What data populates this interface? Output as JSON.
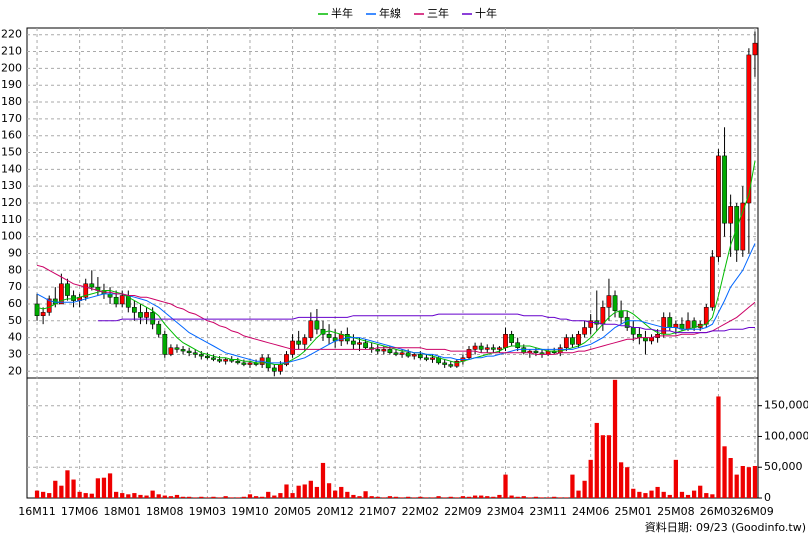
{
  "chart_data": {
    "type": "candlestick",
    "categories": [
      "16M11",
      null,
      null,
      null,
      null,
      null,
      null,
      "17M06",
      null,
      null,
      null,
      null,
      null,
      null,
      "18M01",
      null,
      null,
      null,
      null,
      null,
      null,
      "18M08",
      null,
      null,
      null,
      null,
      null,
      null,
      "19M03",
      null,
      null,
      null,
      null,
      null,
      null,
      "19M10",
      null,
      null,
      null,
      null,
      null,
      null,
      "20M05",
      null,
      null,
      null,
      null,
      null,
      null,
      "20M12",
      null,
      null,
      null,
      null,
      null,
      null,
      "21M07",
      null,
      null,
      null,
      null,
      null,
      null,
      "22M02",
      null,
      null,
      null,
      null,
      null,
      null,
      "22M09",
      null,
      null,
      null,
      null,
      null,
      null,
      "23M04",
      null,
      null,
      null,
      null,
      null,
      null,
      "23M11",
      null,
      null,
      null,
      null,
      null,
      null,
      "24M06",
      null,
      null,
      null,
      null,
      null,
      null,
      "25M01",
      null,
      null,
      null,
      null,
      null,
      null,
      "25M08",
      null,
      null,
      null,
      null,
      null,
      null,
      "26M03",
      null,
      null,
      null,
      null,
      null,
      "26M09"
    ],
    "ohlc": [
      [
        60,
        66,
        50,
        53
      ],
      [
        53,
        58,
        48,
        55
      ],
      [
        55,
        65,
        53,
        63
      ],
      [
        63,
        70,
        58,
        60
      ],
      [
        60,
        78,
        60,
        72
      ],
      [
        72,
        75,
        62,
        65
      ],
      [
        65,
        68,
        58,
        62
      ],
      [
        62,
        66,
        58,
        64
      ],
      [
        64,
        75,
        62,
        72
      ],
      [
        72,
        80,
        68,
        70
      ],
      [
        70,
        76,
        65,
        68
      ],
      [
        68,
        72,
        63,
        66
      ],
      [
        66,
        70,
        60,
        64
      ],
      [
        64,
        68,
        58,
        60
      ],
      [
        60,
        68,
        58,
        65
      ],
      [
        65,
        68,
        55,
        58
      ],
      [
        58,
        62,
        50,
        55
      ],
      [
        55,
        60,
        48,
        52
      ],
      [
        52,
        58,
        48,
        55
      ],
      [
        55,
        58,
        45,
        48
      ],
      [
        48,
        50,
        40,
        42
      ],
      [
        42,
        44,
        28,
        30
      ],
      [
        30,
        36,
        29,
        34
      ],
      [
        34,
        36,
        31,
        33
      ],
      [
        33,
        35,
        30,
        32
      ],
      [
        32,
        34,
        29,
        31
      ],
      [
        31,
        33,
        28,
        30
      ],
      [
        30,
        32,
        27,
        29
      ],
      [
        29,
        31,
        27,
        28
      ],
      [
        28,
        30,
        26,
        27
      ],
      [
        27,
        29,
        25,
        26
      ],
      [
        26,
        28,
        24,
        27
      ],
      [
        27,
        29,
        25,
        26
      ],
      [
        26,
        28,
        24,
        25
      ],
      [
        25,
        27,
        23,
        24
      ],
      [
        24,
        26,
        22,
        25
      ],
      [
        25,
        27,
        23,
        24
      ],
      [
        24,
        30,
        22,
        28
      ],
      [
        28,
        30,
        20,
        22
      ],
      [
        22,
        24,
        17,
        20
      ],
      [
        20,
        26,
        18,
        24
      ],
      [
        24,
        32,
        23,
        30
      ],
      [
        30,
        42,
        28,
        38
      ],
      [
        38,
        44,
        33,
        36
      ],
      [
        36,
        42,
        32,
        40
      ],
      [
        40,
        55,
        38,
        50
      ],
      [
        50,
        57,
        42,
        45
      ],
      [
        45,
        50,
        38,
        42
      ],
      [
        42,
        48,
        36,
        40
      ],
      [
        40,
        45,
        34,
        38
      ],
      [
        38,
        44,
        35,
        42
      ],
      [
        42,
        46,
        36,
        38
      ],
      [
        38,
        42,
        33,
        36
      ],
      [
        36,
        40,
        32,
        37
      ],
      [
        37,
        39,
        33,
        34
      ],
      [
        34,
        37,
        31,
        33
      ],
      [
        33,
        36,
        30,
        32
      ],
      [
        32,
        35,
        30,
        33
      ],
      [
        33,
        35,
        30,
        31
      ],
      [
        31,
        33,
        29,
        30
      ],
      [
        30,
        33,
        28,
        31
      ],
      [
        31,
        33,
        28,
        29
      ],
      [
        29,
        31,
        27,
        30
      ],
      [
        30,
        32,
        27,
        28
      ],
      [
        28,
        30,
        26,
        27
      ],
      [
        27,
        30,
        25,
        28
      ],
      [
        28,
        29,
        24,
        25
      ],
      [
        25,
        27,
        22,
        24
      ],
      [
        24,
        26,
        22,
        23
      ],
      [
        23,
        27,
        22,
        26
      ],
      [
        26,
        30,
        24,
        28
      ],
      [
        28,
        35,
        27,
        33
      ],
      [
        33,
        37,
        30,
        35
      ],
      [
        35,
        37,
        31,
        33
      ],
      [
        33,
        36,
        31,
        34
      ],
      [
        34,
        36,
        31,
        33
      ],
      [
        33,
        35,
        31,
        34
      ],
      [
        34,
        46,
        32,
        42
      ],
      [
        42,
        44,
        35,
        37
      ],
      [
        37,
        40,
        32,
        34
      ],
      [
        34,
        36,
        30,
        31
      ],
      [
        31,
        33,
        28,
        32
      ],
      [
        32,
        34,
        29,
        31
      ],
      [
        31,
        33,
        28,
        30
      ],
      [
        30,
        33,
        29,
        32
      ],
      [
        32,
        34,
        30,
        31
      ],
      [
        31,
        36,
        29,
        34
      ],
      [
        34,
        42,
        32,
        40
      ],
      [
        40,
        42,
        34,
        36
      ],
      [
        36,
        44,
        34,
        42
      ],
      [
        42,
        50,
        40,
        46
      ],
      [
        46,
        54,
        42,
        50
      ],
      [
        50,
        68,
        44,
        48
      ],
      [
        48,
        62,
        44,
        58
      ],
      [
        58,
        75,
        50,
        65
      ],
      [
        65,
        68,
        52,
        56
      ],
      [
        56,
        62,
        48,
        52
      ],
      [
        52,
        56,
        44,
        46
      ],
      [
        46,
        50,
        38,
        42
      ],
      [
        42,
        46,
        36,
        40
      ],
      [
        40,
        44,
        30,
        38
      ],
      [
        38,
        42,
        36,
        40
      ],
      [
        40,
        45,
        37,
        42
      ],
      [
        42,
        55,
        40,
        52
      ],
      [
        52,
        55,
        44,
        46
      ],
      [
        46,
        50,
        42,
        48
      ],
      [
        48,
        52,
        44,
        45
      ],
      [
        45,
        55,
        44,
        50
      ],
      [
        50,
        52,
        44,
        46
      ],
      [
        46,
        50,
        44,
        48
      ],
      [
        48,
        60,
        46,
        58
      ],
      [
        58,
        92,
        56,
        88
      ],
      [
        88,
        152,
        85,
        148
      ],
      [
        148,
        165,
        100,
        108
      ],
      [
        108,
        125,
        88,
        118
      ],
      [
        118,
        120,
        85,
        92
      ],
      [
        92,
        130,
        88,
        120
      ],
      [
        120,
        212,
        90,
        208
      ],
      [
        208,
        222,
        195,
        215
      ]
    ],
    "up_color": "#ff0000",
    "down_color": "#00aa00",
    "ylim": [
      16,
      224
    ],
    "yticks": [
      20,
      30,
      40,
      50,
      60,
      70,
      80,
      90,
      100,
      110,
      120,
      130,
      140,
      150,
      160,
      170,
      180,
      190,
      200,
      210,
      220
    ],
    "grid": true,
    "series": [
      {
        "name": "半年",
        "color": "#00bb00",
        "values": [
          58,
          57,
          58,
          60,
          62,
          63,
          63,
          64,
          65,
          66,
          67,
          68,
          68,
          67,
          66,
          64,
          62,
          60,
          58,
          56,
          53,
          48,
          44,
          40,
          37,
          35,
          33,
          31,
          30,
          29,
          28,
          28,
          27,
          27,
          26,
          26,
          25,
          25,
          25,
          24,
          24,
          25,
          27,
          29,
          32,
          36,
          40,
          43,
          44,
          43,
          42,
          41,
          40,
          39,
          38,
          37,
          36,
          35,
          34,
          33,
          32,
          32,
          31,
          31,
          30,
          29,
          28,
          27,
          26,
          25,
          26,
          27,
          28,
          29,
          30,
          31,
          32,
          34,
          35,
          35,
          35,
          35,
          34,
          33,
          32,
          32,
          32,
          33,
          34,
          35,
          37,
          40,
          44,
          48,
          52,
          55,
          56,
          56,
          54,
          51,
          48,
          45,
          43,
          42,
          42,
          43,
          44,
          45,
          46,
          47,
          48,
          52,
          65,
          80,
          95,
          105,
          115,
          125,
          145
        ]
      },
      {
        "name": "年線",
        "color": "#0066ff",
        "values": [
          66,
          64,
          62,
          61,
          61,
          61,
          61,
          62,
          63,
          64,
          65,
          66,
          66,
          66,
          66,
          65,
          64,
          63,
          62,
          60,
          58,
          55,
          52,
          49,
          46,
          43,
          41,
          39,
          37,
          35,
          33,
          31,
          30,
          29,
          28,
          27,
          26,
          26,
          25,
          25,
          25,
          25,
          26,
          27,
          28,
          30,
          32,
          34,
          36,
          38,
          39,
          40,
          40,
          40,
          39,
          38,
          37,
          36,
          35,
          34,
          33,
          32,
          31,
          31,
          30,
          30,
          29,
          28,
          28,
          27,
          27,
          27,
          28,
          28,
          29,
          29,
          30,
          31,
          32,
          33,
          33,
          33,
          33,
          33,
          33,
          33,
          33,
          33,
          33,
          34,
          35,
          36,
          38,
          40,
          43,
          46,
          48,
          50,
          50,
          50,
          49,
          48,
          47,
          46,
          46,
          46,
          45,
          45,
          45,
          45,
          46,
          48,
          55,
          62,
          70,
          75,
          80,
          88,
          96
        ]
      },
      {
        "name": "三年",
        "color": "#cc0066",
        "values": [
          83,
          82,
          80,
          78,
          76,
          74,
          72,
          71,
          70,
          69,
          68,
          67,
          67,
          66,
          66,
          65,
          65,
          64,
          64,
          63,
          62,
          61,
          60,
          58,
          57,
          55,
          54,
          52,
          50,
          49,
          47,
          46,
          44,
          43,
          41,
          40,
          39,
          38,
          37,
          36,
          35,
          34,
          33,
          33,
          33,
          33,
          33,
          33,
          33,
          33,
          33,
          33,
          33,
          33,
          33,
          33,
          34,
          34,
          34,
          34,
          34,
          34,
          34,
          34,
          33,
          33,
          33,
          33,
          32,
          32,
          32,
          32,
          32,
          31,
          31,
          31,
          31,
          31,
          31,
          31,
          31,
          31,
          30,
          30,
          30,
          30,
          31,
          31,
          31,
          32,
          32,
          33,
          34,
          35,
          36,
          37,
          38,
          39,
          39,
          40,
          40,
          40,
          41,
          41,
          41,
          41,
          42,
          42,
          42,
          43,
          43,
          44,
          46,
          48,
          50,
          52,
          55,
          58,
          61
        ]
      },
      {
        "name": "十年",
        "color": "#6600cc",
        "values": [
          null,
          null,
          null,
          null,
          null,
          null,
          null,
          null,
          null,
          null,
          50,
          50,
          50,
          50,
          51,
          51,
          51,
          51,
          51,
          51,
          51,
          51,
          51,
          51,
          51,
          51,
          51,
          51,
          51,
          51,
          51,
          51,
          51,
          51,
          51,
          51,
          51,
          51,
          51,
          51,
          51,
          51,
          51,
          52,
          52,
          52,
          52,
          52,
          52,
          52,
          52,
          52,
          53,
          53,
          53,
          53,
          53,
          53,
          53,
          53,
          53,
          53,
          53,
          53,
          53,
          53,
          54,
          54,
          54,
          54,
          54,
          54,
          54,
          54,
          54,
          54,
          54,
          54,
          54,
          54,
          53,
          53,
          53,
          53,
          52,
          52,
          51,
          51,
          50,
          50,
          50,
          49,
          49,
          48,
          48,
          48,
          47,
          47,
          46,
          46,
          45,
          45,
          44,
          44,
          44,
          43,
          43,
          43,
          43,
          43,
          43,
          44,
          44,
          44,
          45,
          45,
          45,
          46,
          46
        ]
      }
    ],
    "volume": {
      "color": "#ee0000",
      "values": [
        12000,
        10000,
        8000,
        28000,
        20000,
        45000,
        30000,
        10000,
        8000,
        7000,
        32000,
        33000,
        40000,
        10000,
        8000,
        6000,
        8000,
        5000,
        4000,
        12000,
        6000,
        4000,
        3000,
        5000,
        2000,
        2000,
        1000,
        2000,
        1000,
        2000,
        1000,
        3000,
        1000,
        1000,
        2000,
        6000,
        3000,
        2000,
        10000,
        4000,
        8000,
        22000,
        8000,
        20000,
        22000,
        28000,
        18000,
        57000,
        24000,
        12000,
        18000,
        10000,
        5000,
        3000,
        11000,
        3000,
        2000,
        1000,
        3000,
        2000,
        1000,
        2000,
        1000,
        2000,
        1000,
        1000,
        3000,
        1000,
        2000,
        1000,
        3000,
        2000,
        4000,
        4000,
        3000,
        2000,
        5000,
        38000,
        4000,
        2000,
        3000,
        1000,
        2000,
        1000,
        1000,
        2000,
        1000,
        1000,
        38000,
        12000,
        28000,
        62000,
        122000,
        102000,
        102000,
        192000,
        58000,
        50000,
        15000,
        10000,
        8000,
        12000,
        18000,
        10000,
        5000,
        62000,
        10000,
        5000,
        12000,
        20000,
        8000,
        6000,
        165000,
        84000,
        65000,
        38000,
        52000,
        50000,
        52000
      ],
      "ylim": [
        0,
        195000
      ],
      "yticks": [
        0,
        {
          "value": 50000,
          "label": "50,000"
        },
        {
          "value": 100000,
          "label": "100,000"
        },
        {
          "value": 150000,
          "label": "150,000"
        }
      ]
    },
    "footer": "資料日期: 09/23 (Goodinfo.tw)"
  }
}
